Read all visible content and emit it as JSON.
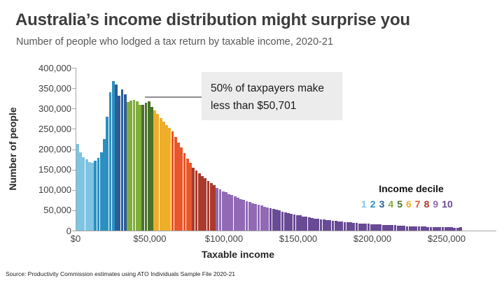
{
  "header": {
    "title": "Australia’s income distribution might surprise you",
    "subtitle": "Number of people who lodged a tax return by taxable income, 2020-21"
  },
  "chart_data": {
    "type": "bar",
    "title": "Australia’s income distribution might surprise you",
    "subtitle": "Number of people who lodged a tax return by taxable income, 2020-21",
    "xlabel": "Taxable income",
    "ylabel": "Number of people",
    "ylim": [
      0,
      400000
    ],
    "xlim": [
      0,
      283000
    ],
    "grid": false,
    "legend_title": "Income decile",
    "legend_position": "right-middle",
    "bin_width": 2000,
    "x_tick_values": [
      0,
      50000,
      100000,
      150000,
      200000,
      250000
    ],
    "x_tick_labels": [
      "$0",
      "$50,000",
      "$100,000",
      "$150,000",
      "$200,000",
      "$250,000"
    ],
    "y_tick_values": [
      400000,
      350000,
      300000,
      250000,
      200000,
      150000,
      100000,
      50000,
      0
    ],
    "y_tick_labels": [
      "400,000",
      "350,000",
      "300,000",
      "250,000",
      "200,000",
      "150,000",
      "100,000",
      "50,000",
      "0"
    ],
    "values": [
      213000,
      192000,
      181000,
      175000,
      169000,
      166000,
      171000,
      179000,
      193000,
      225000,
      280000,
      340000,
      368000,
      358000,
      331000,
      346000,
      334000,
      316000,
      319000,
      321000,
      317000,
      309000,
      309000,
      314000,
      317000,
      304000,
      295000,
      286000,
      277000,
      268000,
      260000,
      252000,
      243000,
      230000,
      217000,
      204000,
      190000,
      177000,
      166000,
      155000,
      147000,
      140000,
      134000,
      128000,
      122000,
      117000,
      111000,
      105000,
      101000,
      97000,
      94000,
      90000,
      87000,
      84000,
      81000,
      78000,
      75000,
      72000,
      70000,
      67000,
      65000,
      63000,
      61000,
      59000,
      57000,
      55000,
      53000,
      51000,
      49000,
      47000,
      45000,
      43000,
      41000,
      40000,
      38000,
      37000,
      35000,
      34000,
      33000,
      31000,
      30000,
      29000,
      28000,
      27000,
      26000,
      25000,
      24000,
      24000,
      23000,
      22000,
      21000,
      21000,
      20000,
      19000,
      19000,
      18000,
      18000,
      17000,
      17000,
      16000,
      16000,
      15000,
      15000,
      14000,
      14000,
      13000,
      13000,
      13000,
      12000,
      12000,
      12000,
      11000,
      11000,
      11000,
      10000,
      10000,
      10000,
      10000,
      9000,
      9000,
      9000,
      9000,
      8000,
      8000,
      8000,
      8000,
      8000,
      7000,
      7000,
      9000
    ],
    "deciles": [
      {
        "label": "1",
        "from": 0,
        "color": "#7ec4e3"
      },
      {
        "label": "2",
        "from": 12000,
        "color": "#2b90c1"
      },
      {
        "label": "3",
        "from": 26000,
        "color": "#2c5d99"
      },
      {
        "label": "4",
        "from": 34000,
        "color": "#80ad3c"
      },
      {
        "label": "5",
        "from": 44000,
        "color": "#4a722c"
      },
      {
        "label": "6",
        "from": 52000,
        "color": "#efae2a"
      },
      {
        "label": "7",
        "from": 64000,
        "color": "#e8562a"
      },
      {
        "label": "8",
        "from": 78000,
        "color": "#ab3a2c"
      },
      {
        "label": "9",
        "from": 94000,
        "color": "#9169b4"
      },
      {
        "label": "10",
        "from": 130000,
        "color": "#694a95"
      }
    ],
    "annotation": {
      "line1": "50% of taxpayers make",
      "line2": "less than $50,701",
      "median_income": "$50,701"
    },
    "colors": {
      "axis": "#a6a6a6",
      "tick_text": "#404040",
      "annotation_bg": "#ececec",
      "connector": "#8e8e8e",
      "title_text": "#3d3d3d",
      "subtitle_text": "#575757"
    }
  },
  "footer": {
    "source": "Source: Productivity Commission estimates using ATO Individuals Sample File 2020-21"
  }
}
